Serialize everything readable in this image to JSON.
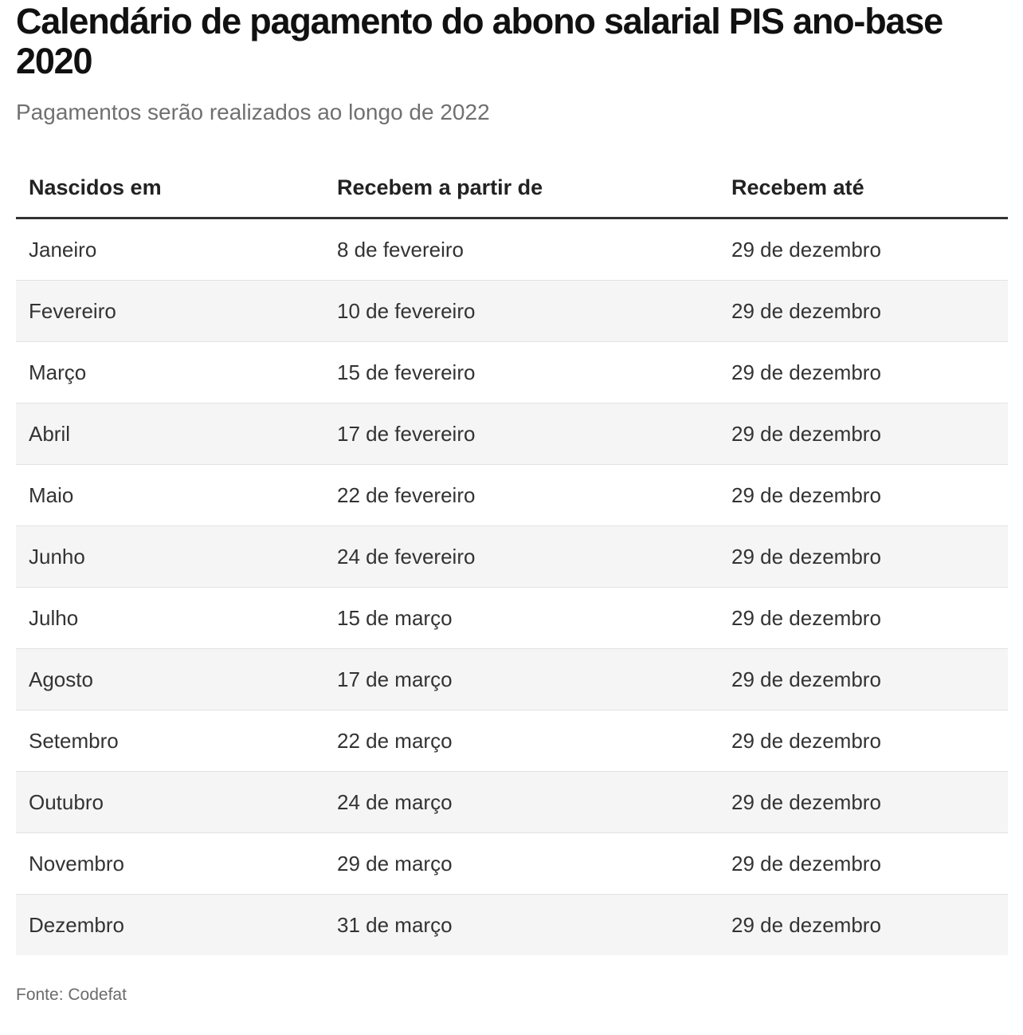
{
  "title": "Calendário de pagamento do abono salarial PIS ano-base 2020",
  "subtitle": "Pagamentos serão realizados ao longo de 2022",
  "source": "Fonte: Codefat",
  "colors": {
    "header_rule": "#333333",
    "stripe": "#f5f5f5",
    "row_divider": "#e2e2e2"
  },
  "chart_data": {
    "type": "table",
    "columns": [
      "Nascidos em",
      "Recebem a partir de",
      "Recebem até"
    ],
    "rows": [
      [
        "Janeiro",
        "8 de fevereiro",
        "29 de dezembro"
      ],
      [
        "Fevereiro",
        "10 de fevereiro",
        "29 de dezembro"
      ],
      [
        "Março",
        "15 de fevereiro",
        "29 de dezembro"
      ],
      [
        "Abril",
        "17 de fevereiro",
        "29 de dezembro"
      ],
      [
        "Maio",
        "22 de fevereiro",
        "29 de dezembro"
      ],
      [
        "Junho",
        "24 de fevereiro",
        "29 de dezembro"
      ],
      [
        "Julho",
        "15 de março",
        "29 de dezembro"
      ],
      [
        "Agosto",
        "17 de março",
        "29 de dezembro"
      ],
      [
        "Setembro",
        "22 de março",
        "29 de dezembro"
      ],
      [
        "Outubro",
        "24 de março",
        "29 de dezembro"
      ],
      [
        "Novembro",
        "29 de março",
        "29 de dezembro"
      ],
      [
        "Dezembro",
        "31 de março",
        "29 de dezembro"
      ]
    ]
  }
}
